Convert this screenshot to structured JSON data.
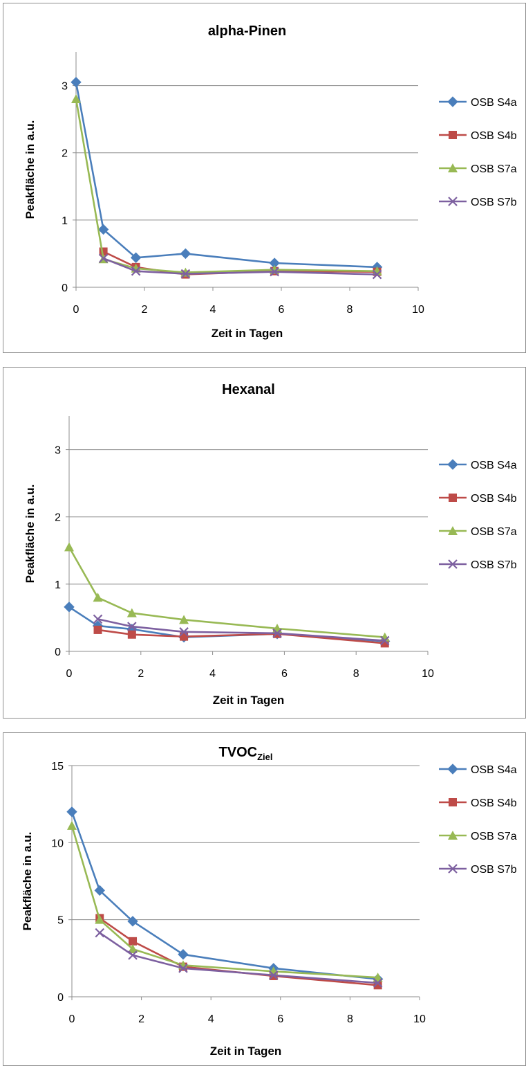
{
  "chart_data": [
    {
      "type": "line",
      "title": "alpha-Pinen",
      "title_sub": "",
      "xlabel": "Zeit in Tagen",
      "ylabel": "Peakfläche in a.u.",
      "xlim": [
        0,
        10
      ],
      "ylim": [
        0,
        3.5
      ],
      "xticks": [
        0,
        2,
        4,
        6,
        8,
        10
      ],
      "yticks": [
        0,
        1,
        2,
        3
      ],
      "grid": true,
      "legend": "right",
      "series": [
        {
          "name": "OSB S4a",
          "color": "#4a7ebb",
          "marker": "diamond",
          "points": [
            [
              0,
              3.05
            ],
            [
              0.8,
              0.86
            ],
            [
              1.75,
              0.44
            ],
            [
              3.2,
              0.5
            ],
            [
              5.8,
              0.36
            ],
            [
              8.8,
              0.3
            ]
          ]
        },
        {
          "name": "OSB S4b",
          "color": "#be4b48",
          "marker": "square",
          "points": [
            [
              0.8,
              0.53
            ],
            [
              1.75,
              0.3
            ],
            [
              3.2,
              0.19
            ],
            [
              5.8,
              0.24
            ],
            [
              8.8,
              0.23
            ]
          ]
        },
        {
          "name": "OSB S7a",
          "color": "#98b954",
          "marker": "triangle",
          "points": [
            [
              0,
              2.8
            ],
            [
              0.8,
              0.42
            ],
            [
              1.75,
              0.28
            ],
            [
              3.2,
              0.22
            ],
            [
              5.8,
              0.26
            ],
            [
              8.8,
              0.24
            ]
          ]
        },
        {
          "name": "OSB S7b",
          "color": "#7d60a0",
          "marker": "x",
          "points": [
            [
              0.8,
              0.43
            ],
            [
              1.75,
              0.24
            ],
            [
              3.2,
              0.2
            ],
            [
              5.8,
              0.23
            ],
            [
              8.8,
              0.19
            ]
          ]
        }
      ]
    },
    {
      "type": "line",
      "title": "Hexanal",
      "title_sub": "",
      "xlabel": "Zeit in Tagen",
      "ylabel": "Peakfläche in a.u.",
      "xlim": [
        0,
        10
      ],
      "ylim": [
        0,
        3.5
      ],
      "xticks": [
        0,
        2,
        4,
        6,
        8,
        10
      ],
      "yticks": [
        0,
        1,
        2,
        3
      ],
      "grid": true,
      "legend": "right",
      "series": [
        {
          "name": "OSB S4a",
          "color": "#4a7ebb",
          "marker": "diamond",
          "points": [
            [
              0,
              0.66
            ],
            [
              0.8,
              0.38
            ],
            [
              1.75,
              0.33
            ],
            [
              3.2,
              0.21
            ],
            [
              5.8,
              0.26
            ],
            [
              8.8,
              0.15
            ]
          ]
        },
        {
          "name": "OSB S4b",
          "color": "#be4b48",
          "marker": "square",
          "points": [
            [
              0.8,
              0.32
            ],
            [
              1.75,
              0.25
            ],
            [
              3.2,
              0.22
            ],
            [
              5.8,
              0.26
            ],
            [
              8.8,
              0.12
            ]
          ]
        },
        {
          "name": "OSB S7a",
          "color": "#98b954",
          "marker": "triangle",
          "points": [
            [
              0,
              1.55
            ],
            [
              0.8,
              0.8
            ],
            [
              1.75,
              0.57
            ],
            [
              3.2,
              0.47
            ],
            [
              5.8,
              0.34
            ],
            [
              8.8,
              0.21
            ]
          ]
        },
        {
          "name": "OSB S7b",
          "color": "#7d60a0",
          "marker": "x",
          "points": [
            [
              0.8,
              0.48
            ],
            [
              1.75,
              0.37
            ],
            [
              3.2,
              0.29
            ],
            [
              5.8,
              0.27
            ],
            [
              8.8,
              0.16
            ]
          ]
        }
      ]
    },
    {
      "type": "line",
      "title": "TVOC",
      "title_sub": "Ziel",
      "xlabel": "Zeit in Tagen",
      "ylabel": "Peakfläche in a.u.",
      "xlim": [
        0,
        10
      ],
      "ylim": [
        0,
        15
      ],
      "xticks": [
        0,
        2,
        4,
        6,
        8,
        10
      ],
      "yticks": [
        0,
        5,
        10,
        15
      ],
      "grid": true,
      "legend": "right",
      "series": [
        {
          "name": "OSB S4a",
          "color": "#4a7ebb",
          "marker": "diamond",
          "points": [
            [
              0,
              12.0
            ],
            [
              0.8,
              6.9
            ],
            [
              1.75,
              4.9
            ],
            [
              3.2,
              2.75
            ],
            [
              5.8,
              1.85
            ],
            [
              8.8,
              1.15
            ]
          ]
        },
        {
          "name": "OSB S4b",
          "color": "#be4b48",
          "marker": "square",
          "points": [
            [
              0.8,
              5.1
            ],
            [
              1.75,
              3.6
            ],
            [
              3.2,
              1.95
            ],
            [
              5.8,
              1.35
            ],
            [
              8.8,
              0.75
            ]
          ]
        },
        {
          "name": "OSB S7a",
          "color": "#98b954",
          "marker": "triangle",
          "points": [
            [
              0,
              11.1
            ],
            [
              0.8,
              5.0
            ],
            [
              1.75,
              3.1
            ],
            [
              3.2,
              2.05
            ],
            [
              5.8,
              1.65
            ],
            [
              8.8,
              1.25
            ]
          ]
        },
        {
          "name": "OSB S7b",
          "color": "#7d60a0",
          "marker": "x",
          "points": [
            [
              0.8,
              4.15
            ],
            [
              1.75,
              2.7
            ],
            [
              3.2,
              1.85
            ],
            [
              5.8,
              1.4
            ],
            [
              8.8,
              0.9
            ]
          ]
        }
      ]
    }
  ]
}
